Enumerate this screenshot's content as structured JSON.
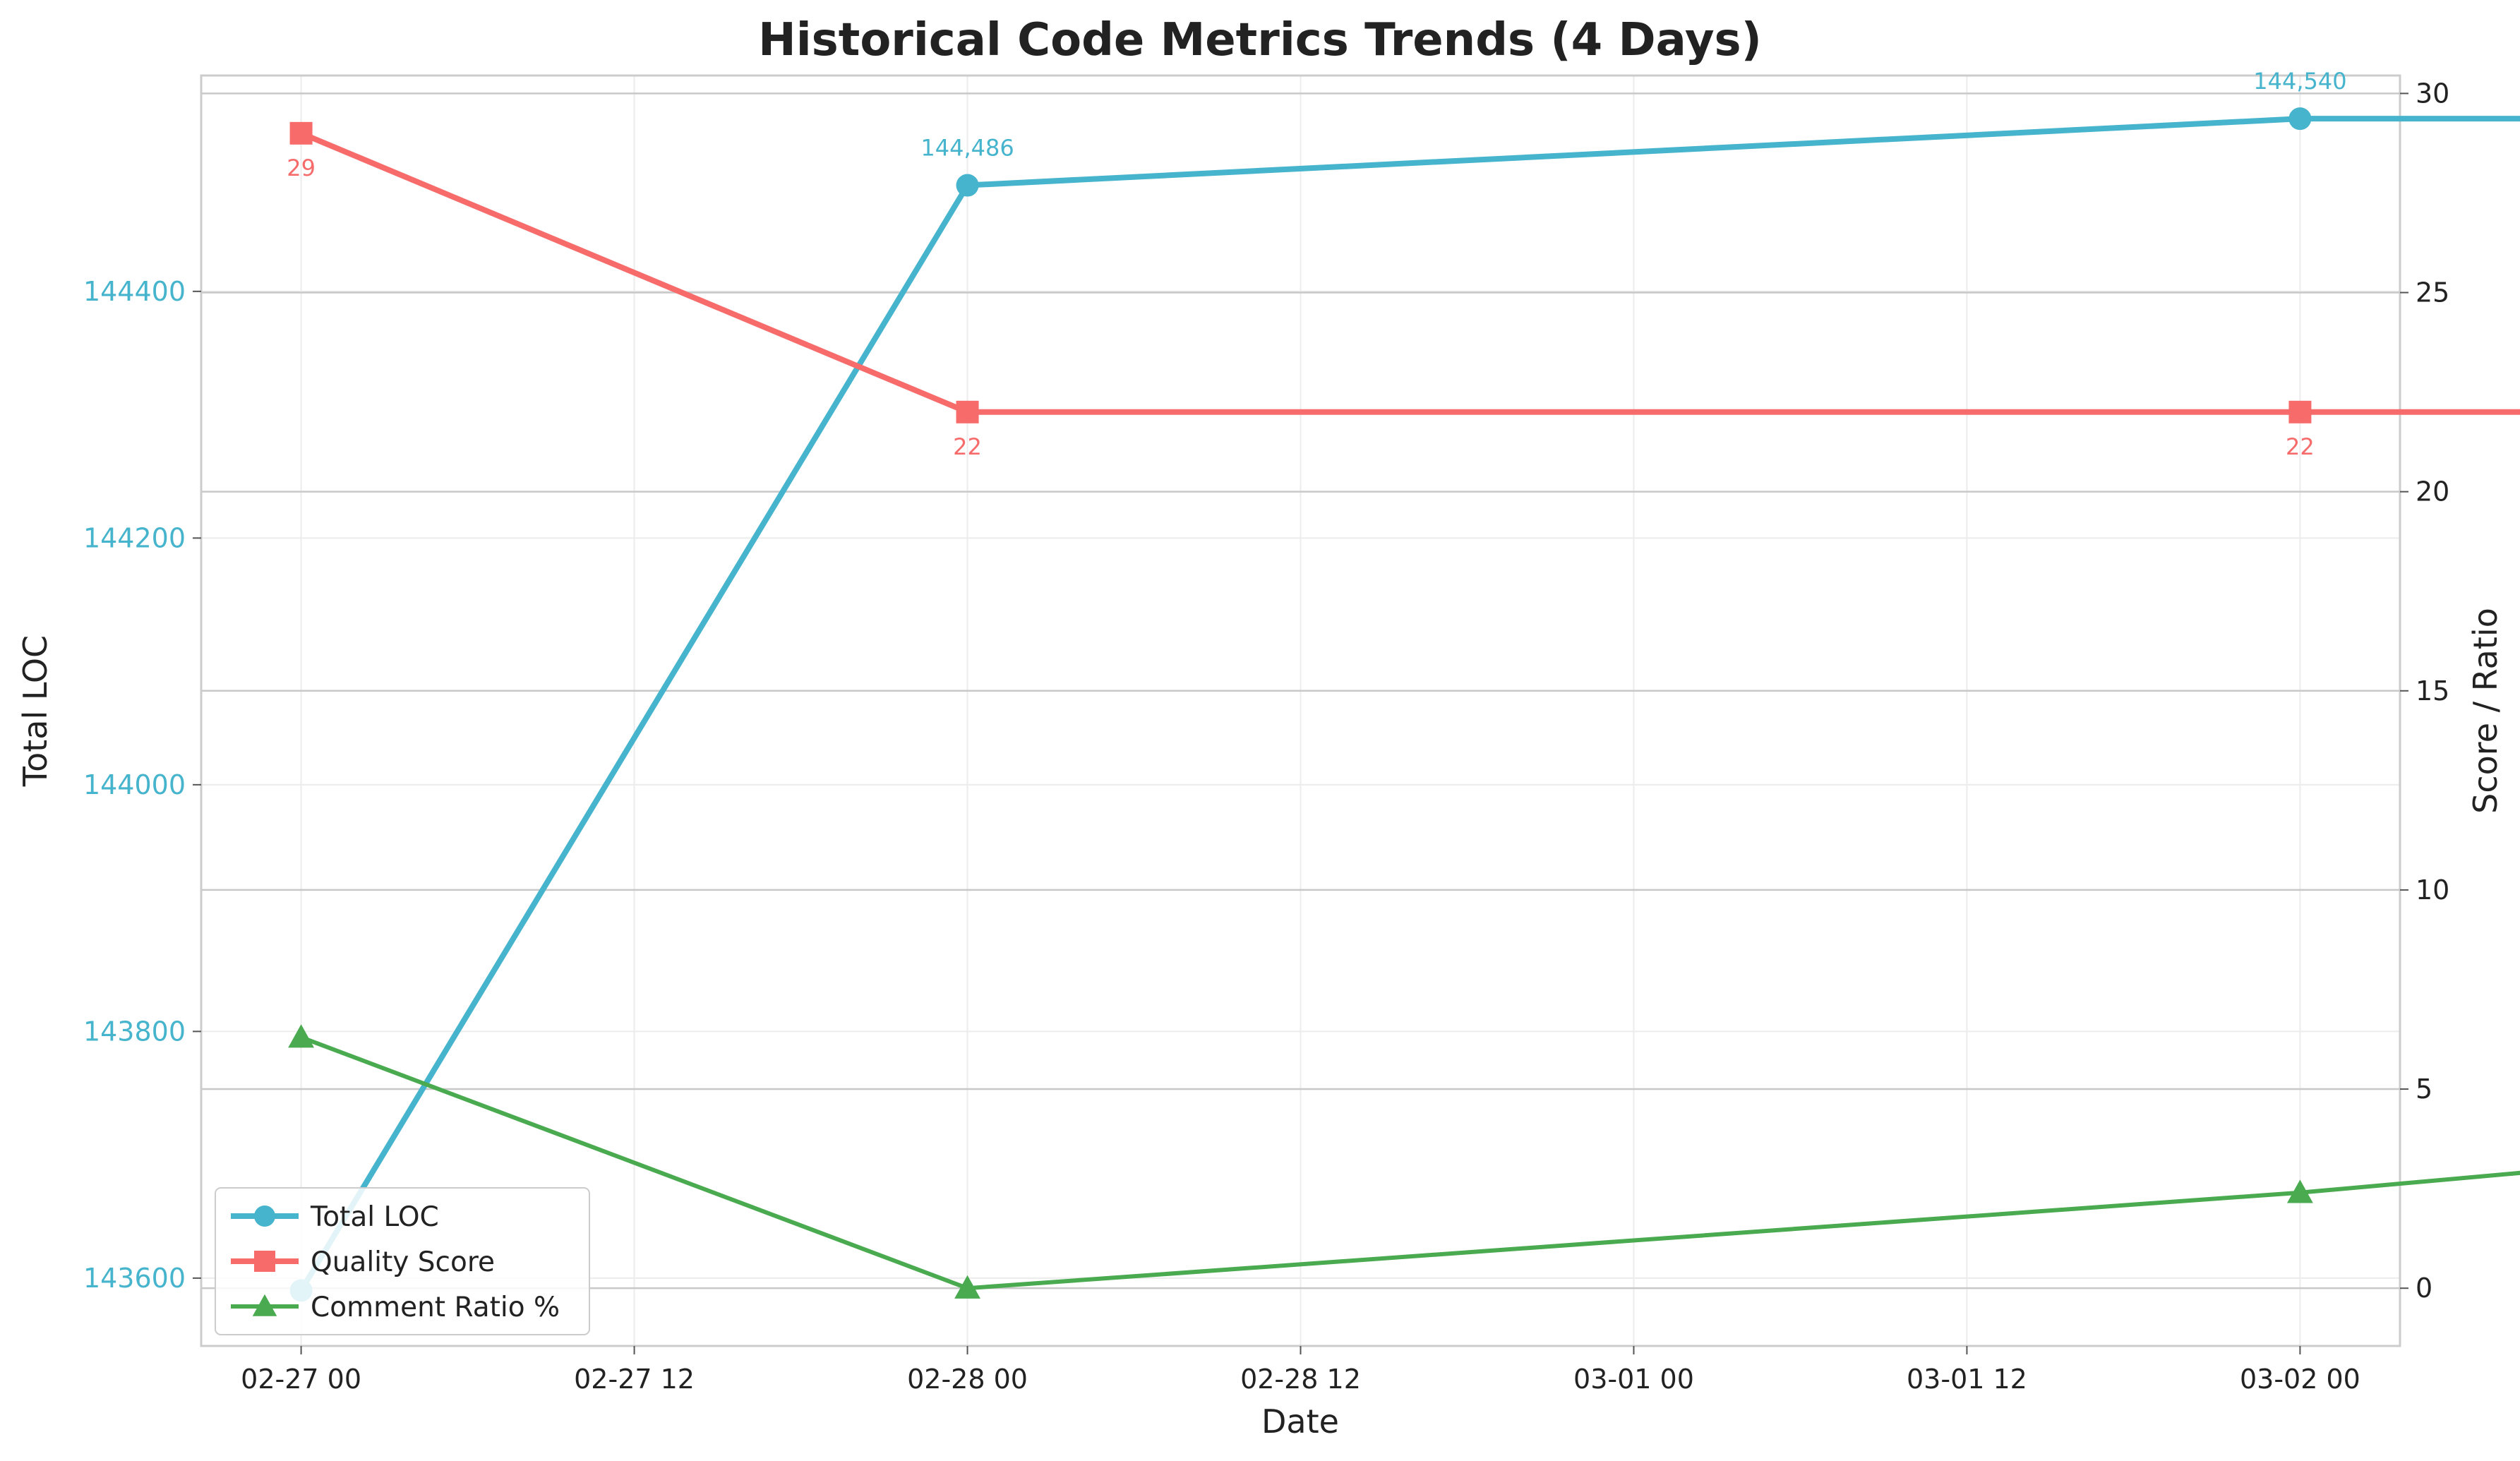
{
  "chart_data": {
    "type": "line",
    "title": "Historical Code Metrics Trends (4 Days)",
    "xlabel": "Date",
    "ylabel_left": "Total LOC",
    "ylabel_right": "Score / Ratio",
    "x": [
      "2024-02-27 00:00",
      "2024-02-28 00:00",
      "2024-03-01 00:00",
      "2024-03-02 00:00"
    ],
    "x_tick_labels": [
      "02-27 00",
      "02-27 12",
      "02-28 00",
      "02-28 12",
      "03-01 00",
      "03-01 12",
      "03-02 00"
    ],
    "y_left_ticks": [
      "143600",
      "143800",
      "144000",
      "144200",
      "144400"
    ],
    "y_right_ticks": [
      "0",
      "5",
      "10",
      "15",
      "20",
      "25",
      "30"
    ],
    "ylim_left": [
      143545,
      144575
    ],
    "ylim_right": [
      -1.45,
      30.45
    ],
    "xlim_days": [
      -0.15,
      3.15
    ],
    "grid": true,
    "legend_position": "lower-left",
    "series": [
      {
        "name": "Total LOC",
        "axis": "left",
        "color": "#45b4cc",
        "marker": "circle",
        "values": [
          143590,
          144486,
          144540,
          144540
        ],
        "labels": [
          "",
          "144,486",
          "144,540",
          "144,540"
        ]
      },
      {
        "name": "Quality Score",
        "axis": "right",
        "color": "#f76b6b",
        "marker": "square",
        "values": [
          29,
          22,
          22,
          22
        ],
        "labels": [
          "29",
          "22",
          "22",
          "22"
        ]
      },
      {
        "name": "Comment Ratio %",
        "axis": "right",
        "color": "#4aaa50",
        "marker": "triangle",
        "values": [
          6.3,
          0.0,
          2.4,
          3.9
        ],
        "labels": [
          "",
          "",
          "",
          ""
        ]
      }
    ]
  }
}
